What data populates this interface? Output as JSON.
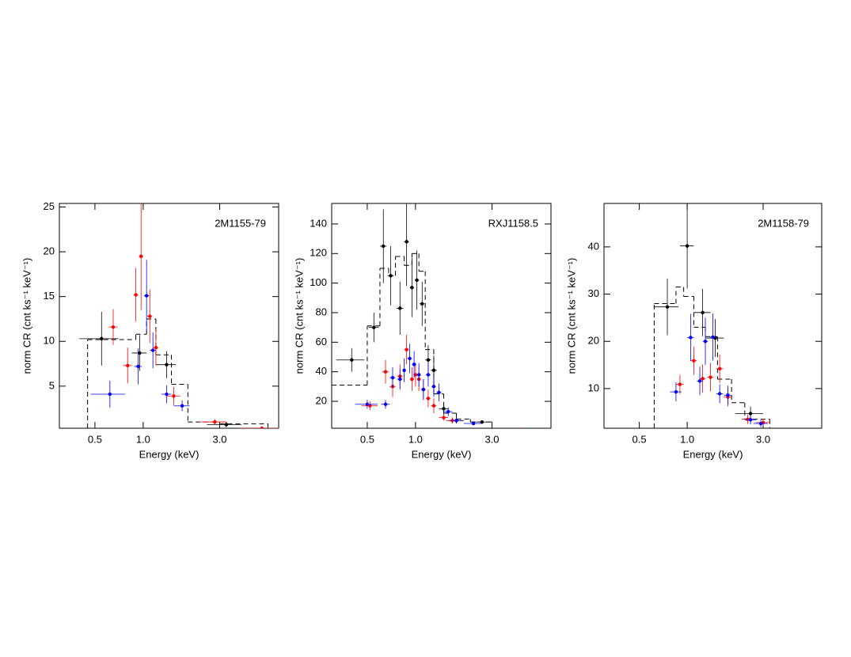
{
  "chart_data": [
    {
      "type": "errorbar",
      "title": "2M1155-79",
      "xlabel": "Energy (keV)",
      "ylabel": "norm CR (cnt ks⁻¹ keV⁻¹)",
      "xscale": "log",
      "xlim": [
        0.3,
        7
      ],
      "xticks": [
        0.5,
        {
          "value": 1,
          "label": "1.0"
        },
        {
          "value": 3,
          "label": "3.0"
        }
      ],
      "ylim": [
        0.3,
        25.4
      ],
      "yticks": [
        5,
        10,
        15,
        20,
        25
      ],
      "series": [
        {
          "color": "#000000",
          "x": [
            0.55,
            0.95,
            1.4,
            3.3
          ],
          "xerr": [
            0.15,
            0.1,
            0.2,
            0.8
          ],
          "values": [
            10.3,
            8.7,
            7.4,
            0.7
          ],
          "yerr": [
            3,
            2,
            1.5,
            0.3
          ]
        },
        {
          "color": "#ff0000",
          "x": [
            0.65,
            0.8,
            0.9,
            0.97,
            1.1,
            1.2,
            1.55,
            2.8,
            5.5
          ],
          "xerr": [
            0.04,
            0.05,
            0.03,
            0.03,
            0.04,
            0.05,
            0.15,
            0.5,
            1.5
          ],
          "values": [
            11.6,
            7.3,
            15.2,
            19.5,
            12.8,
            9.3,
            3.9,
            1.0,
            0.3
          ],
          "yerr": [
            2,
            2,
            3,
            6,
            3,
            2,
            1,
            0.3,
            0.2
          ]
        },
        {
          "color": "#0000ff",
          "x": [
            0.62,
            0.93,
            1.05,
            1.15,
            1.4,
            1.75
          ],
          "xerr": [
            0.15,
            0.05,
            0.04,
            0.05,
            0.1,
            0.2
          ],
          "values": [
            4.1,
            7.2,
            15.1,
            9.0,
            4.1,
            2.8
          ],
          "yerr": [
            1.5,
            2,
            4,
            2,
            1,
            0.6
          ]
        }
      ],
      "model": {
        "color": "#000000",
        "edges": [
          0.45,
          0.9,
          1.05,
          1.2,
          1.5,
          1.9,
          3.0,
          6
        ],
        "values": [
          10.2,
          10.8,
          12.5,
          8.5,
          5.2,
          1.0,
          0.8
        ]
      }
    },
    {
      "type": "errorbar",
      "title": "RXJ1158.5",
      "xlabel": "Energy (keV)",
      "ylabel": "norm CR (cnt ks⁻¹ keV⁻¹)",
      "xscale": "log",
      "xlim": [
        0.3,
        7
      ],
      "xticks": [
        0.5,
        {
          "value": 1,
          "label": "1.0"
        },
        {
          "value": 3,
          "label": "3.0"
        }
      ],
      "ylim": [
        1.8,
        153.9
      ],
      "yticks": [
        20,
        40,
        60,
        80,
        100,
        120,
        140
      ],
      "series": [
        {
          "color": "#000000",
          "x": [
            0.4,
            0.55,
            0.63,
            0.7,
            0.8,
            0.88,
            0.95,
            1.02,
            1.1,
            1.2,
            1.3,
            1.5,
            1.8,
            2.6
          ],
          "xerr": [
            0.08,
            0.04,
            0.03,
            0.03,
            0.04,
            0.03,
            0.03,
            0.03,
            0.04,
            0.05,
            0.06,
            0.1,
            0.2,
            0.4
          ],
          "values": [
            48,
            70,
            125,
            105,
            83,
            128,
            97,
            102,
            86,
            48,
            41,
            15,
            7,
            6
          ],
          "yerr": [
            8,
            10,
            25,
            20,
            18,
            30,
            20,
            20,
            15,
            10,
            10,
            4,
            2,
            1
          ]
        },
        {
          "color": "#ff0000",
          "x": [
            0.52,
            0.65,
            0.72,
            0.8,
            0.88,
            0.95,
            1.0,
            1.05,
            1.12,
            1.2,
            1.3,
            1.5,
            1.7,
            4.5
          ],
          "xerr": [
            0.06,
            0.03,
            0.03,
            0.03,
            0.03,
            0.03,
            0.03,
            0.03,
            0.04,
            0.04,
            0.05,
            0.1,
            0.15,
            0.5
          ],
          "values": [
            17,
            40,
            30,
            37,
            55,
            35,
            38,
            35,
            28,
            22,
            17,
            9,
            7,
            1
          ],
          "yerr": [
            3,
            8,
            7,
            8,
            10,
            8,
            8,
            8,
            7,
            6,
            5,
            2,
            2,
            0.5
          ]
        },
        {
          "color": "#0000ff",
          "x": [
            0.5,
            0.65,
            0.72,
            0.8,
            0.85,
            0.92,
            0.98,
            1.05,
            1.12,
            1.2,
            1.3,
            1.4,
            1.6,
            1.8,
            2.3
          ],
          "xerr": [
            0.08,
            0.04,
            0.03,
            0.03,
            0.02,
            0.03,
            0.03,
            0.03,
            0.03,
            0.04,
            0.04,
            0.05,
            0.1,
            0.15,
            0.3
          ],
          "values": [
            18,
            18,
            36,
            35,
            41,
            49,
            45,
            38,
            28,
            38,
            30,
            26,
            13,
            7,
            5
          ],
          "yerr": [
            3,
            3,
            7,
            7,
            8,
            10,
            9,
            8,
            7,
            8,
            7,
            6,
            3,
            2,
            1
          ]
        }
      ],
      "model": {
        "color": "#000000",
        "edges": [
          0.3,
          0.5,
          0.6,
          0.68,
          0.75,
          0.85,
          0.95,
          1.05,
          1.15,
          1.3,
          1.5,
          1.8,
          2.2,
          3.0
        ],
        "values": [
          31,
          71,
          110,
          105,
          118,
          112,
          120,
          108,
          55,
          25,
          12,
          8,
          6
        ]
      }
    },
    {
      "type": "errorbar",
      "title": "2M1158-79",
      "xlabel": "Energy (keV)",
      "ylabel": "norm CR (cnt ks⁻¹ keV⁻¹)",
      "xscale": "log",
      "xlim": [
        0.3,
        7
      ],
      "xticks": [
        0.5,
        {
          "value": 1,
          "label": "1.0"
        },
        {
          "value": 3,
          "label": "3.0"
        }
      ],
      "ylim": [
        1.6,
        49.2
      ],
      "yticks": [
        10,
        20,
        30,
        40
      ],
      "series": [
        {
          "color": "#000000",
          "x": [
            0.75,
            1.0,
            1.25,
            1.5,
            2.5
          ],
          "xerr": [
            0.13,
            0.1,
            0.15,
            0.2,
            0.5
          ],
          "values": [
            27.3,
            40.2,
            26.1,
            20.7,
            4.7
          ],
          "yerr": [
            6,
            9,
            5,
            4,
            1.5
          ]
        },
        {
          "color": "#ff0000",
          "x": [
            0.9,
            1.1,
            1.25,
            1.4,
            1.6,
            1.8,
            2.4,
            3.0
          ],
          "xerr": [
            0.05,
            0.05,
            0.05,
            0.06,
            0.08,
            0.1,
            0.2,
            0.3
          ],
          "values": [
            10.9,
            15.9,
            12.1,
            12.4,
            14.2,
            8.2,
            3.5,
            2.8
          ],
          "yerr": [
            2,
            3,
            3,
            3,
            3,
            2,
            1,
            0.8
          ]
        },
        {
          "color": "#0000ff",
          "x": [
            0.85,
            1.05,
            1.2,
            1.3,
            1.45,
            1.6,
            1.8,
            2.5,
            2.9
          ],
          "xerr": [
            0.07,
            0.05,
            0.05,
            0.05,
            0.06,
            0.08,
            0.1,
            0.2,
            0.3
          ],
          "values": [
            9.3,
            20.8,
            11.6,
            20,
            20.9,
            8.9,
            8.6,
            3.4,
            2.6
          ],
          "yerr": [
            2,
            5,
            3,
            5,
            5,
            2,
            2,
            1,
            0.8
          ]
        }
      ],
      "model": {
        "color": "#000000",
        "edges": [
          0.62,
          0.85,
          0.95,
          1.1,
          1.3,
          1.55,
          1.9,
          2.3,
          3.3
        ],
        "values": [
          28,
          31.5,
          29.5,
          23,
          21,
          12,
          7,
          3.5
        ]
      }
    }
  ]
}
